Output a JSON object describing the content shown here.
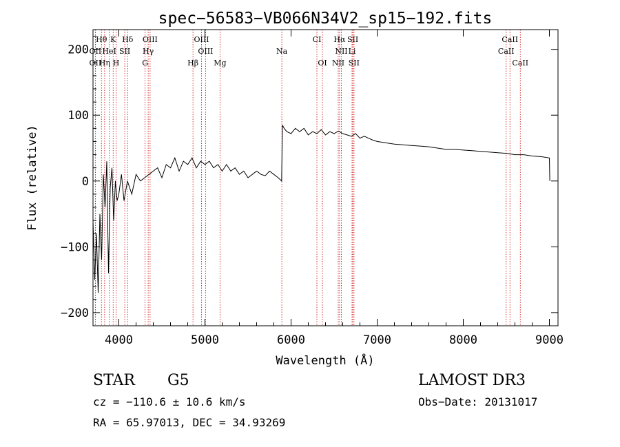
{
  "chart_data": {
    "type": "line",
    "title": "spec−56583−VB066N34V2_sp15−192.fits",
    "xlabel": "Wavelength (Å)",
    "ylabel": "Flux (relative)",
    "xlim": [
      3700,
      9100
    ],
    "ylim": [
      -220,
      230
    ],
    "x_ticks": [
      4000,
      5000,
      6000,
      7000,
      8000,
      9000
    ],
    "y_ticks": [
      -200,
      -100,
      0,
      100,
      200
    ],
    "x_tick_labels": [
      "4000",
      "5000",
      "6000",
      "7000",
      "8000",
      "9000"
    ],
    "y_tick_labels": [
      "−200",
      "−100",
      "0",
      "100",
      "200"
    ],
    "series": [
      {
        "name": "flux",
        "x": [
          3700,
          3720,
          3740,
          3760,
          3780,
          3800,
          3820,
          3840,
          3860,
          3880,
          3900,
          3920,
          3940,
          3960,
          3980,
          4000,
          4030,
          4060,
          4100,
          4150,
          4200,
          4250,
          4300,
          4350,
          4400,
          4450,
          4500,
          4550,
          4600,
          4650,
          4700,
          4750,
          4800,
          4850,
          4900,
          4950,
          5000,
          5050,
          5100,
          5150,
          5200,
          5250,
          5300,
          5350,
          5400,
          5450,
          5500,
          5550,
          5600,
          5650,
          5700,
          5750,
          5800,
          5850,
          5890,
          5900,
          5920,
          5950,
          6000,
          6050,
          6100,
          6150,
          6200,
          6250,
          6300,
          6350,
          6400,
          6450,
          6500,
          6550,
          6600,
          6650,
          6700,
          6750,
          6800,
          6850,
          6900,
          6950,
          7000,
          7100,
          7200,
          7300,
          7400,
          7500,
          7600,
          7700,
          7800,
          7900,
          8000,
          8100,
          8200,
          8300,
          8400,
          8500,
          8600,
          8700,
          8800,
          8900,
          9000,
          9005
        ],
        "values": [
          -60,
          -150,
          -80,
          -170,
          -50,
          -120,
          10,
          -40,
          30,
          -140,
          -10,
          20,
          -60,
          0,
          -30,
          -20,
          10,
          -30,
          0,
          -20,
          10,
          0,
          5,
          10,
          15,
          20,
          5,
          25,
          20,
          35,
          15,
          30,
          25,
          35,
          20,
          30,
          25,
          30,
          20,
          25,
          15,
          25,
          15,
          20,
          10,
          15,
          5,
          10,
          15,
          10,
          8,
          15,
          10,
          5,
          0,
          85,
          80,
          75,
          72,
          80,
          75,
          80,
          70,
          75,
          72,
          78,
          70,
          75,
          72,
          76,
          72,
          70,
          68,
          72,
          65,
          68,
          65,
          62,
          60,
          58,
          56,
          55,
          54,
          53,
          52,
          50,
          48,
          48,
          47,
          46,
          45,
          44,
          43,
          42,
          40,
          40,
          38,
          37,
          35,
          0
        ]
      }
    ],
    "lines": [
      {
        "label": "Hθ",
        "x": 3798,
        "row": 0
      },
      {
        "label": "K",
        "x": 3934,
        "row": 0
      },
      {
        "label": "Hδ",
        "x": 4102,
        "row": 0
      },
      {
        "label": "OIII",
        "x": 4363,
        "row": 0
      },
      {
        "label": "OIII",
        "x": 4960,
        "row": 0
      },
      {
        "label": "CI",
        "x": 6300,
        "row": 0
      },
      {
        "label": "Hα",
        "x": 6563,
        "row": 0
      },
      {
        "label": "SII",
        "x": 6717,
        "row": 0
      },
      {
        "label": "CaII",
        "x": 8542,
        "row": 0
      },
      {
        "label": "OII",
        "x": 3727,
        "row": 1
      },
      {
        "label": "HeI",
        "x": 3889,
        "row": 1
      },
      {
        "label": "SII",
        "x": 4069,
        "row": 1
      },
      {
        "label": "Hγ",
        "x": 4341,
        "row": 1
      },
      {
        "label": "OIII",
        "x": 5007,
        "row": 1
      },
      {
        "label": "Na",
        "x": 5893,
        "row": 1
      },
      {
        "label": "NII",
        "x": 6584,
        "row": 1
      },
      {
        "label": "Li",
        "x": 6708,
        "row": 1
      },
      {
        "label": "CaII",
        "x": 8498,
        "row": 1
      },
      {
        "label": "OII",
        "x": 3727,
        "row": 2
      },
      {
        "label": "Hη",
        "x": 3835,
        "row": 2
      },
      {
        "label": "H",
        "x": 3968,
        "row": 2
      },
      {
        "label": "G",
        "x": 4305,
        "row": 2
      },
      {
        "label": "Hβ",
        "x": 4861,
        "row": 2
      },
      {
        "label": "Mg",
        "x": 5175,
        "row": 2
      },
      {
        "label": "OI",
        "x": 6364,
        "row": 2
      },
      {
        "label": "NII",
        "x": 6548,
        "row": 2
      },
      {
        "label": "SII",
        "x": 6731,
        "row": 2
      },
      {
        "label": "CaII",
        "x": 8662,
        "row": 2
      }
    ],
    "line_color": "#cc0000"
  },
  "info": {
    "object_class": "STAR",
    "subclass": "G5",
    "survey": "LAMOST DR3",
    "cz": "cz = −110.6 ± 10.6 km/s",
    "obs_date": "Obs−Date: 20131017",
    "coords": "RA =  65.97013, DEC =  34.93269"
  }
}
